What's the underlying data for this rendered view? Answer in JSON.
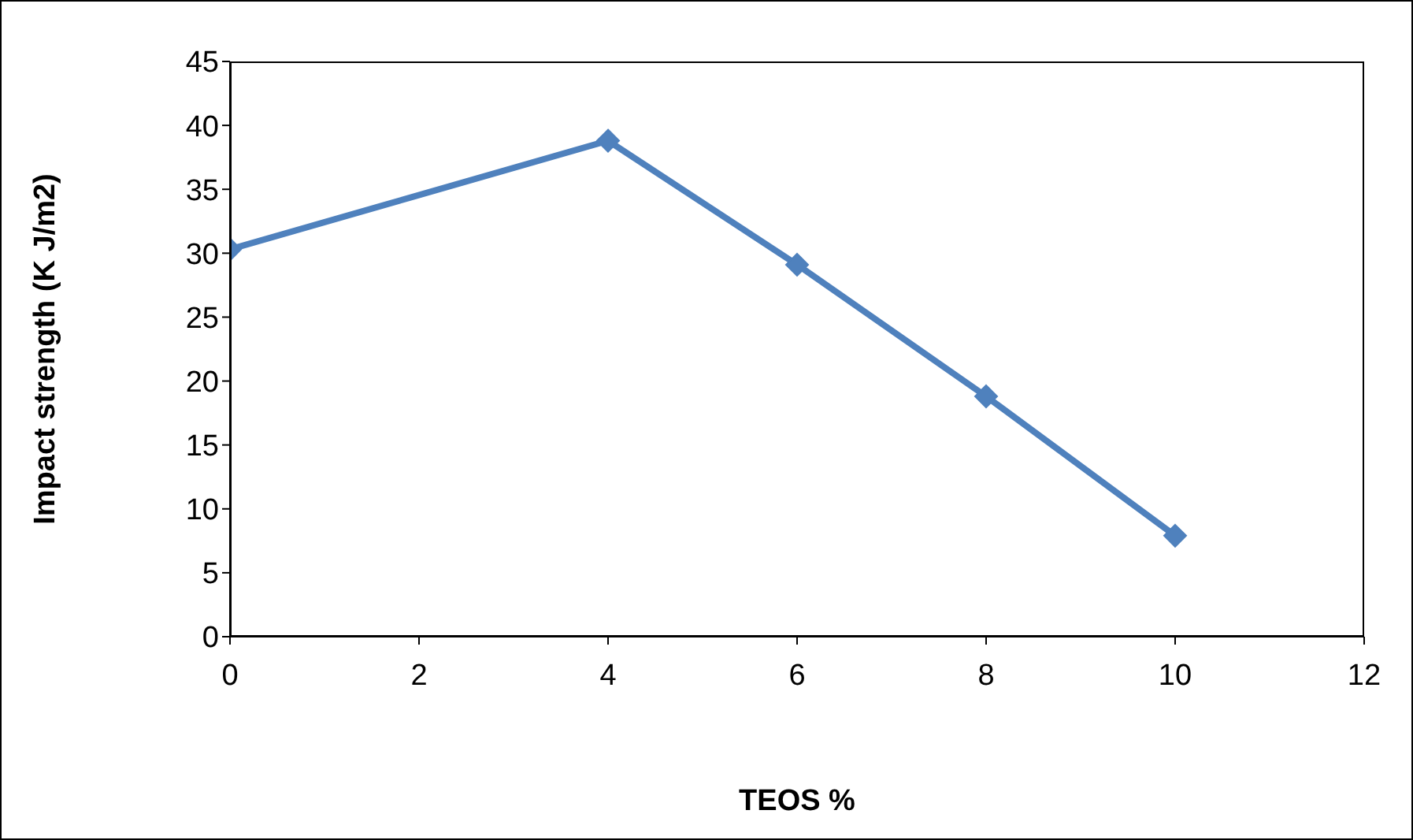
{
  "chart_data": {
    "type": "line",
    "xlabel": "TEOS %",
    "ylabel": "Impact strength (K J/m2)",
    "x": [
      0,
      4,
      6,
      8,
      10
    ],
    "series": [
      {
        "color": "#4f81bd",
        "values": [
          30.3,
          38.8,
          29.1,
          18.8,
          7.9
        ]
      }
    ],
    "xlim": [
      0,
      12
    ],
    "xticks": [
      0,
      2,
      4,
      6,
      8,
      10,
      12
    ],
    "ylim": [
      0,
      45
    ],
    "yticks": [
      0,
      5,
      10,
      15,
      20,
      25,
      30,
      35,
      40,
      45
    ],
    "grid": false,
    "legend": false,
    "marker": "diamond",
    "line_style": "solid"
  }
}
